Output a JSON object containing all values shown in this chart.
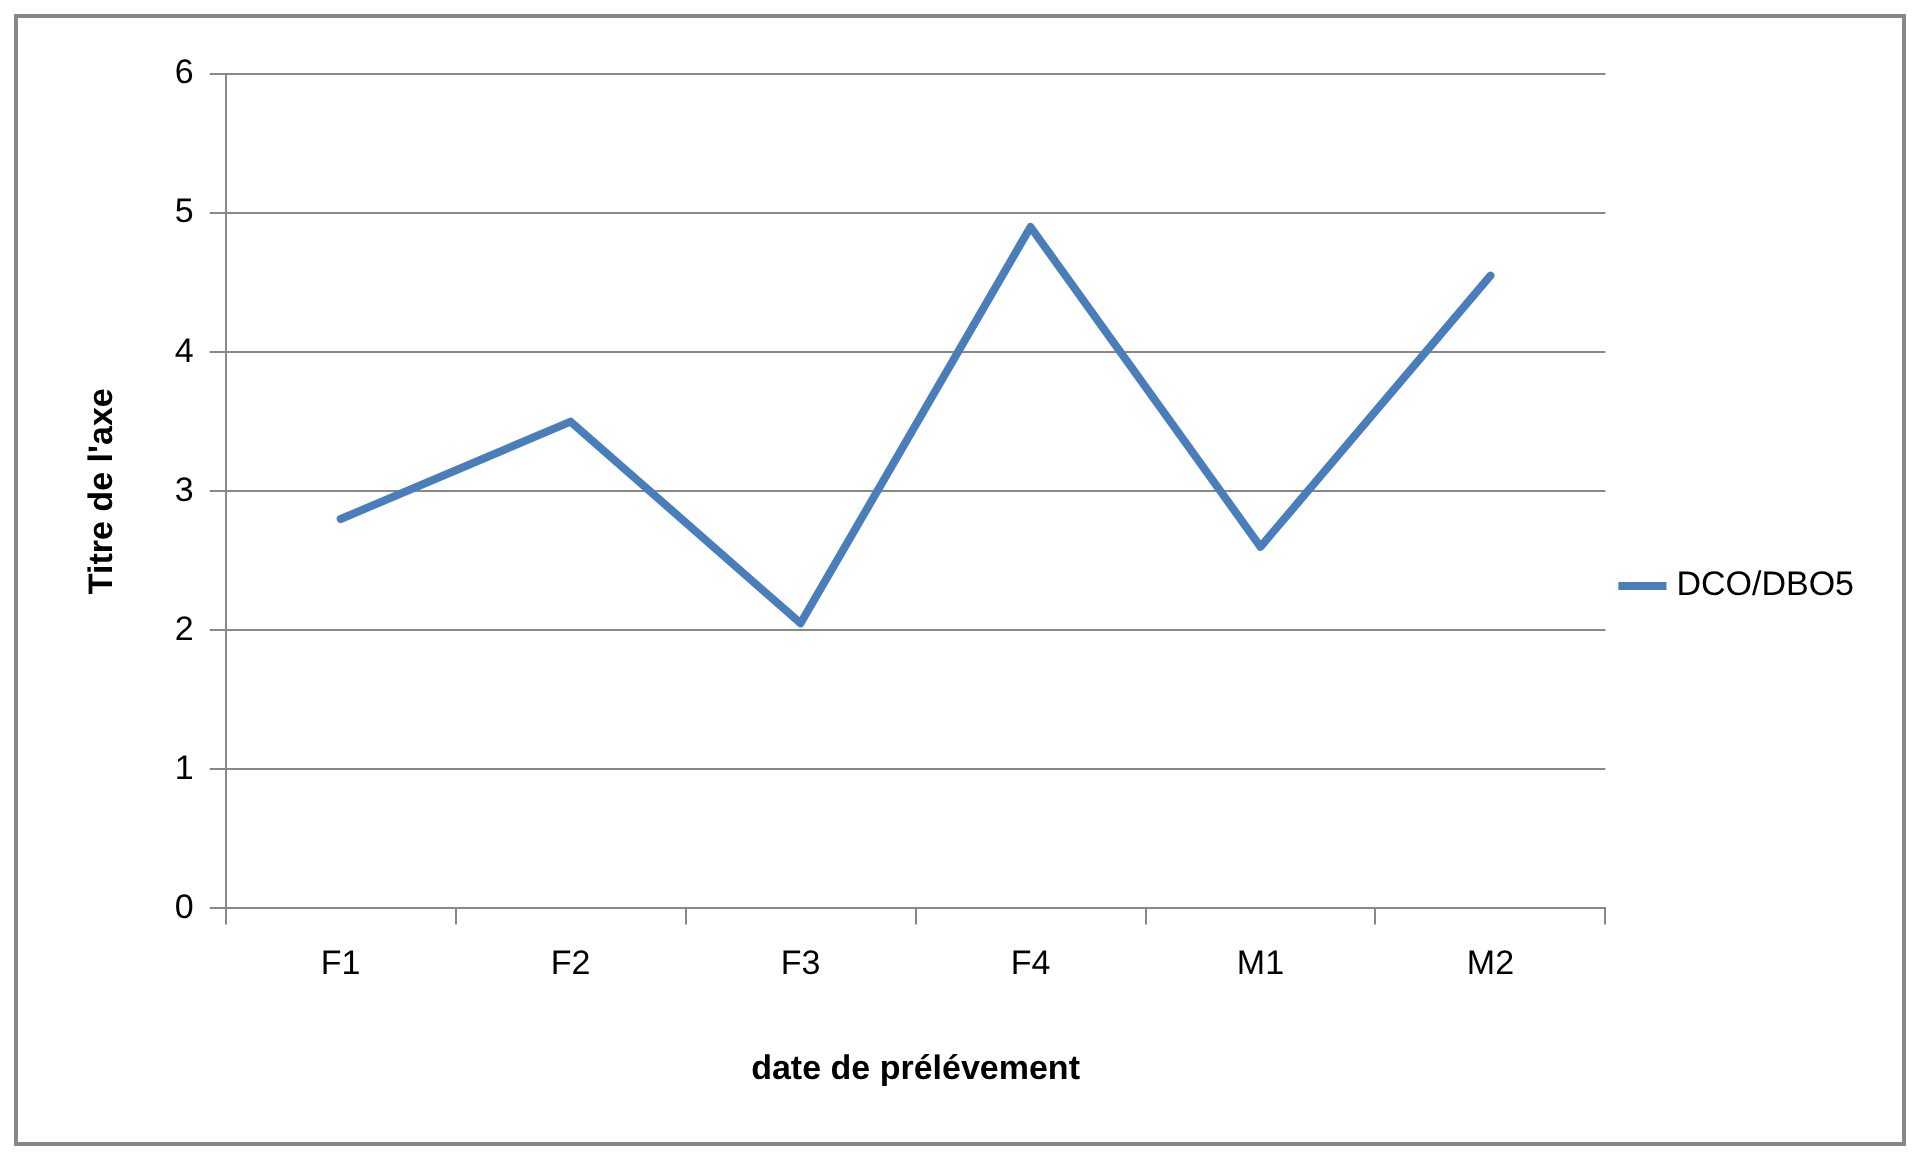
{
  "chart_data": {
    "type": "line",
    "xlabel": "date de prélévement",
    "ylabel": "Titre de l'axe",
    "categories": [
      "F1",
      "F2",
      "F3",
      "F4",
      "M1",
      "M2"
    ],
    "series": [
      {
        "name": "DCO/DBO5",
        "color": "#4a7ebb",
        "values": [
          2.8,
          3.5,
          2.05,
          4.9,
          2.6,
          4.55
        ]
      }
    ],
    "ylim": [
      0,
      6
    ],
    "yticks": [
      0,
      1,
      2,
      3,
      4,
      5,
      6
    ],
    "grid": "y",
    "legend": "right",
    "marker": "none",
    "line_style": "solid"
  }
}
